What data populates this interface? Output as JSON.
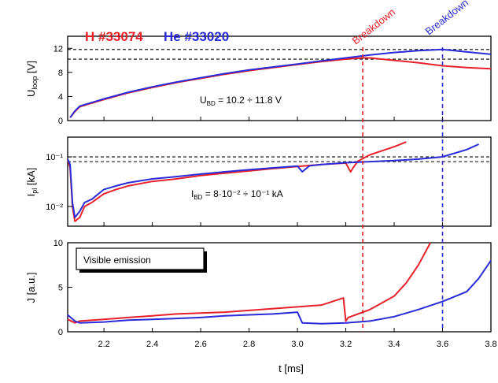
{
  "colors": {
    "H": "#e8202a",
    "He": "#2a2ad8",
    "threshold": "#000000",
    "axis": "#000000",
    "text": "#000000"
  },
  "legend": {
    "h_label": "H #33074",
    "he_label": "He #33020"
  },
  "breakdown": {
    "h_label": "Breakdown",
    "he_label": "Breakdown",
    "h_time": 3.27,
    "he_time": 3.6
  },
  "x_axis": {
    "label": "t [ms]",
    "ticks": [
      "2.2",
      "2.4",
      "2.6",
      "2.8",
      "3.0",
      "3.2",
      "3.4",
      "3.6",
      "3.8"
    ],
    "tick_values": [
      2.2,
      2.4,
      2.6,
      2.8,
      3.0,
      3.2,
      3.4,
      3.6,
      3.8
    ],
    "range": [
      2.05,
      3.8
    ]
  },
  "panels": {
    "uloop": {
      "ylabel_main": "U",
      "ylabel_sub": "loop",
      "ylabel_unit": " [V]",
      "ticks": [
        "0",
        "4",
        "8",
        "12"
      ],
      "annotation_main": "U",
      "annotation_sub": "BD",
      "annotation_rest": " = 10.2 ÷ 11.8 V"
    },
    "ipl": {
      "ylabel_main": "I",
      "ylabel_sub": "pl",
      "ylabel_unit": " [kA]",
      "ticks": [
        "10⁻¹",
        "10⁻²"
      ],
      "annotation_main": "I",
      "annotation_sub": "BD",
      "annotation_rest": " = 8·10⁻² ÷ 10⁻¹ kA"
    },
    "emission": {
      "ylabel": "J [a.u.]",
      "ticks": [
        "0",
        "5",
        "10"
      ],
      "box_label": "Visible emission"
    }
  },
  "chart_data": [
    {
      "type": "line",
      "panel": "Uloop",
      "ylabel": "Uloop [V]",
      "ylim": [
        0,
        14
      ],
      "thresholds": [
        10.2,
        11.8
      ],
      "series": [
        {
          "name": "H #33074",
          "x": [
            2.06,
            2.08,
            2.1,
            2.2,
            2.3,
            2.4,
            2.5,
            2.6,
            2.7,
            2.8,
            2.9,
            3.0,
            3.1,
            3.2,
            3.27,
            3.3,
            3.4,
            3.5,
            3.6,
            3.7,
            3.8
          ],
          "y": [
            0.5,
            1.5,
            2.3,
            3.5,
            4.6,
            5.5,
            6.3,
            7.0,
            7.7,
            8.3,
            8.8,
            9.3,
            9.8,
            10.2,
            10.4,
            10.4,
            10.0,
            9.6,
            9.1,
            8.8,
            8.6
          ]
        },
        {
          "name": "He #33020",
          "x": [
            2.06,
            2.08,
            2.1,
            2.2,
            2.3,
            2.4,
            2.5,
            2.6,
            2.7,
            2.8,
            2.9,
            3.0,
            3.1,
            3.2,
            3.3,
            3.4,
            3.5,
            3.6,
            3.7,
            3.8
          ],
          "y": [
            0.5,
            1.6,
            2.4,
            3.6,
            4.7,
            5.6,
            6.4,
            7.1,
            7.8,
            8.4,
            8.9,
            9.4,
            9.9,
            10.4,
            10.9,
            11.3,
            11.6,
            11.8,
            11.4,
            11.0
          ]
        }
      ]
    },
    {
      "type": "line",
      "panel": "Ipl",
      "ylabel": "Ipl [kA]",
      "log_scale": true,
      "ylim": [
        0.004,
        0.25
      ],
      "thresholds": [
        0.08,
        0.1
      ],
      "series": [
        {
          "name": "H #33074",
          "x": [
            2.05,
            2.06,
            2.07,
            2.08,
            2.1,
            2.12,
            2.15,
            2.2,
            2.25,
            2.3,
            2.4,
            2.5,
            2.6,
            2.7,
            2.8,
            2.9,
            3.0,
            3.1,
            3.2,
            3.22,
            3.23,
            3.25,
            3.3,
            3.4,
            3.45
          ],
          "y": [
            0.09,
            0.06,
            0.01,
            0.005,
            0.006,
            0.01,
            0.012,
            0.018,
            0.022,
            0.026,
            0.032,
            0.036,
            0.042,
            0.047,
            0.052,
            0.058,
            0.064,
            0.07,
            0.075,
            0.05,
            0.06,
            0.082,
            0.11,
            0.16,
            0.2
          ]
        },
        {
          "name": "He #33020",
          "x": [
            2.05,
            2.06,
            2.07,
            2.08,
            2.1,
            2.12,
            2.15,
            2.2,
            2.25,
            2.3,
            2.4,
            2.5,
            2.6,
            2.7,
            2.8,
            2.9,
            3.0,
            3.02,
            3.05,
            3.1,
            3.2,
            3.3,
            3.4,
            3.5,
            3.6,
            3.7,
            3.75
          ],
          "y": [
            0.09,
            0.07,
            0.012,
            0.006,
            0.008,
            0.012,
            0.014,
            0.022,
            0.026,
            0.03,
            0.036,
            0.04,
            0.045,
            0.05,
            0.055,
            0.06,
            0.065,
            0.05,
            0.066,
            0.07,
            0.076,
            0.08,
            0.084,
            0.09,
            0.1,
            0.14,
            0.18
          ]
        }
      ]
    },
    {
      "type": "line",
      "panel": "Visible emission",
      "ylabel": "J [a.u.]",
      "ylim": [
        0,
        10
      ],
      "series": [
        {
          "name": "H #33074",
          "x": [
            2.05,
            2.08,
            2.1,
            2.2,
            2.3,
            2.4,
            2.5,
            2.6,
            2.7,
            2.8,
            2.9,
            3.0,
            3.1,
            3.19,
            3.2,
            3.21,
            3.3,
            3.4,
            3.45,
            3.5,
            3.55
          ],
          "y": [
            1.4,
            1.0,
            1.2,
            1.4,
            1.6,
            1.8,
            2.0,
            2.1,
            2.2,
            2.4,
            2.6,
            2.8,
            3.0,
            3.8,
            1.2,
            1.6,
            2.5,
            4.0,
            5.5,
            7.5,
            10.0
          ]
        },
        {
          "name": "He #33020",
          "x": [
            2.05,
            2.08,
            2.1,
            2.2,
            2.3,
            2.4,
            2.5,
            2.6,
            2.7,
            2.8,
            2.9,
            3.0,
            3.02,
            3.1,
            3.2,
            3.3,
            3.4,
            3.5,
            3.6,
            3.7,
            3.75,
            3.8
          ],
          "y": [
            1.9,
            1.2,
            1.0,
            1.1,
            1.3,
            1.4,
            1.5,
            1.6,
            1.8,
            1.9,
            2.0,
            2.2,
            1.0,
            0.9,
            1.0,
            1.2,
            1.7,
            2.5,
            3.4,
            4.5,
            6.0,
            8.0
          ]
        }
      ]
    }
  ]
}
